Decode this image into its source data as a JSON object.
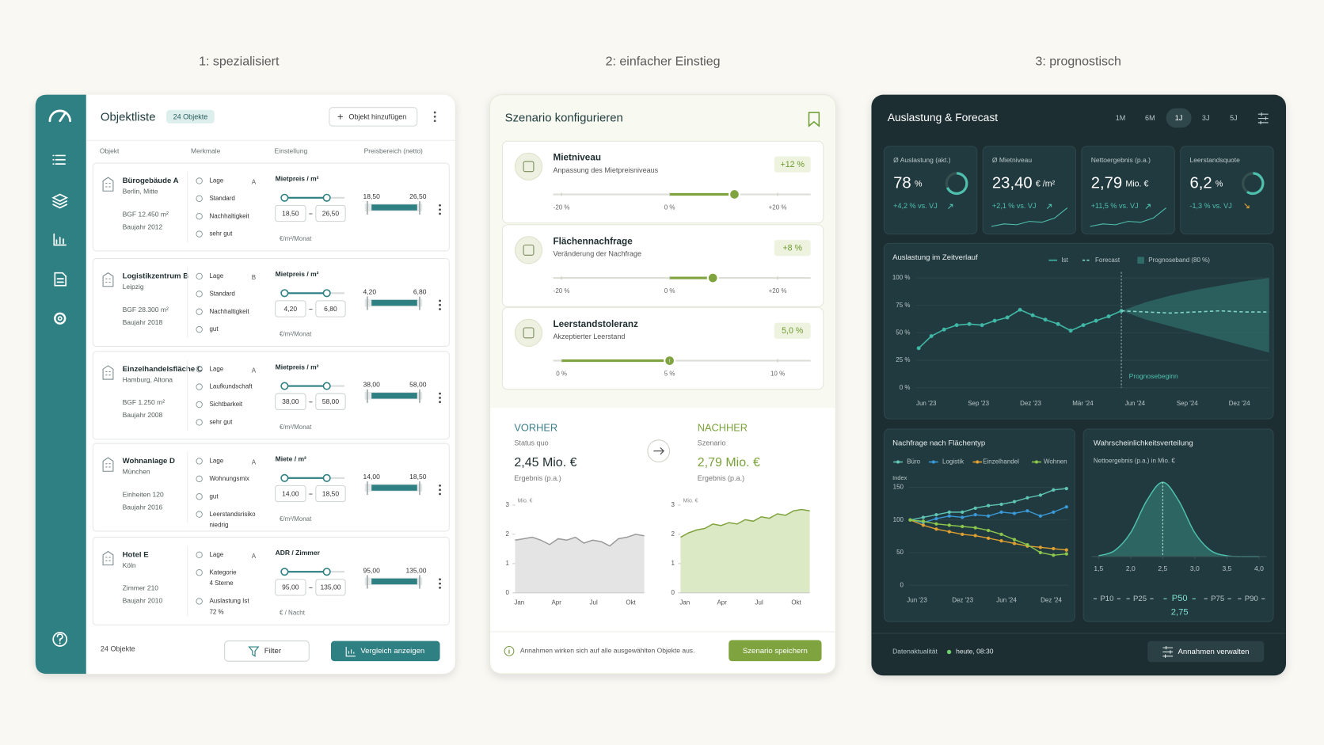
{
  "columns": [
    "1: spezialisiert",
    "2: einfacher Einstieg",
    "3: prognostisch"
  ],
  "objektliste": {
    "title": "Objektliste",
    "badge": "24 Objekte",
    "add_button": "Objekt hinzufügen",
    "headers": [
      "Objekt",
      "Merkmale",
      "Einstellung",
      "Preisbereich (netto)"
    ],
    "rows": [
      {
        "name": "Bürogebäude A",
        "location": "Berlin, Mitte",
        "details": [
          "BGF 12.450 m²",
          "Baujahr 2012"
        ],
        "features": [
          [
            "Lage"
          ],
          [
            "Standard"
          ],
          [
            "Nachhaltigkeit"
          ],
          [
            "sehr gut"
          ]
        ],
        "grade": "A",
        "setting": "Mietpreis / m²",
        "min": "18,50",
        "max": "26,50",
        "unit": "€/m²/Monat"
      },
      {
        "name": "Logistikzentrum B",
        "location": "Leipzig",
        "details": [
          "BGF 28.300 m²",
          "Baujahr 2018"
        ],
        "features": [
          [
            "Lage"
          ],
          [
            "Standard"
          ],
          [
            "Nachhaltigkeit"
          ],
          [
            "gut"
          ]
        ],
        "grade": "B",
        "setting": "Mietpreis / m²",
        "min": "4,20",
        "max": "6,80",
        "unit": "€/m²/Monat"
      },
      {
        "name": "Einzelhandelsfläche C",
        "location": "Hamburg, Altona",
        "details": [
          "BGF 1.250 m²",
          "Baujahr 2008"
        ],
        "features": [
          [
            "Lage"
          ],
          [
            "Laufkundschaft"
          ],
          [
            "Sichtbarkeit"
          ],
          [
            "sehr gut"
          ]
        ],
        "grade": "A",
        "setting": "Mietpreis / m²",
        "min": "38,00",
        "max": "58,00",
        "unit": "€/m²/Monat"
      },
      {
        "name": "Wohnanlage D",
        "location": "München",
        "details": [
          "Einheiten 120",
          "Baujahr 2016"
        ],
        "features": [
          [
            "Lage"
          ],
          [
            "Wohnungsmix"
          ],
          [
            "gut"
          ],
          [
            "Leerstandsrisiko",
            "niedrig"
          ]
        ],
        "grade": "A",
        "setting": "Miete / m²",
        "min": "14,00",
        "max": "18,50",
        "unit": "€/m²/Monat"
      },
      {
        "name": "Hotel E",
        "location": "Köln",
        "details": [
          "Zimmer 210",
          "Baujahr 2010"
        ],
        "features": [
          [
            "Lage"
          ],
          [
            "Kategorie",
            "4 Sterne"
          ],
          [
            "Auslastung Ist",
            "72 %"
          ]
        ],
        "grade": "A",
        "setting": "ADR / Zimmer",
        "min": "95,00",
        "max": "135,00",
        "unit": "€ / Nacht"
      }
    ],
    "count": "24 Objekte",
    "filter": "Filter",
    "compare": "Vergleich anzeigen"
  },
  "szenario": {
    "title": "Szenario konfigurieren",
    "sliders": [
      {
        "title": "Mietniveau",
        "subtitle": "Anpassung des Mietpreisniveaus",
        "value": 12,
        "value_label": "+12 %",
        "ticks": [
          {
            "value": -20,
            "label": "-20 %"
          },
          {
            "value": 0,
            "label": "0 %"
          },
          {
            "value": 20,
            "label": "+20 %"
          }
        ]
      },
      {
        "title": "Flächennachfrage",
        "subtitle": "Veränderung der Nachfrage",
        "value": 8,
        "value_label": "+8 %",
        "ticks": [
          {
            "value": -20,
            "label": "-20 %"
          },
          {
            "value": 0,
            "label": "0 %"
          },
          {
            "value": 20,
            "label": "+20 %"
          }
        ]
      },
      {
        "title": "Leerstandstoleranz",
        "subtitle": "Akzeptierter Leerstand",
        "value": 5,
        "value_label": "5,0 %",
        "ticks": [
          {
            "value": 0,
            "label": "0 %"
          },
          {
            "value": 5,
            "label": "5 %"
          },
          {
            "value": 10,
            "label": "10 %"
          }
        ]
      }
    ],
    "vorher": {
      "heading": "VORHER",
      "subheading": "Status quo",
      "result": "2,45 Mio. €",
      "result_label": "Ergebnis (p.a.)",
      "chart": {
        "type": "area",
        "ylabel": "Mio. €",
        "ylim": [
          0,
          3
        ],
        "yticks": [
          0,
          1,
          2,
          3
        ],
        "categories": [
          "Jan",
          "Apr",
          "Jul",
          "Okt"
        ],
        "values": [
          1.8,
          1.85,
          1.9,
          1.8,
          1.65,
          1.85,
          1.8,
          1.9,
          1.7,
          1.8,
          1.75,
          1.6,
          1.85,
          1.9,
          2.0,
          1.95
        ]
      }
    },
    "nachher": {
      "heading": "NACHHER",
      "subheading": "Szenario",
      "result": "2,79 Mio. €",
      "result_label": "Ergebnis (p.a.)",
      "chart": {
        "type": "area",
        "ylabel": "Mio. €",
        "ylim": [
          0,
          3
        ],
        "yticks": [
          0,
          1,
          2,
          3
        ],
        "categories": [
          "Jan",
          "Apr",
          "Jul",
          "Okt"
        ],
        "values": [
          1.9,
          2.05,
          2.15,
          2.2,
          2.35,
          2.3,
          2.4,
          2.35,
          2.5,
          2.45,
          2.6,
          2.55,
          2.7,
          2.65,
          2.8,
          2.85,
          2.8
        ]
      }
    },
    "note": "Annahmen wirken sich auf alle ausgewählten Objekte aus.",
    "save": "Szenario speichern"
  },
  "forecast": {
    "title": "Auslastung & Forecast",
    "ranges": [
      "1M",
      "6M",
      "1J",
      "3J",
      "5J"
    ],
    "active_range": 2,
    "kpis": [
      {
        "label": "Ø Auslastung (akt.)",
        "value": "78",
        "unit": "%",
        "change": "+4,2 % vs. VJ"
      },
      {
        "label": "Ø Mietniveau",
        "value": "23,40",
        "unit": "€ /m²",
        "change": "+2,1 % vs. VJ"
      },
      {
        "label": "Nettoergebnis (p.a.)",
        "value": "2,79",
        "unit": "Mio. €",
        "change": "+11,5 % vs. VJ"
      },
      {
        "label": "Leerstandsquote",
        "value": "6,2",
        "unit": "%",
        "change": "-1,3 % vs. VJ"
      }
    ],
    "utilization": {
      "type": "line",
      "title": "Auslastung im Zeitverlauf",
      "series": [
        {
          "name": "Ist",
          "color": "#3fb8a6",
          "values": [
            36,
            47,
            53,
            57,
            58,
            57,
            61,
            64,
            71,
            66,
            62,
            58,
            52,
            57,
            61,
            65,
            70
          ]
        },
        {
          "name": "Forecast",
          "color": "#7fd6c6",
          "values": [
            70,
            69,
            68,
            69,
            70,
            69,
            69
          ]
        }
      ],
      "band": {
        "name": "Prognoseband (80 %)",
        "color": "#2f6c68",
        "upper": [
          70,
          78,
          84,
          89,
          93,
          97,
          100
        ],
        "lower": [
          70,
          62,
          56,
          50,
          44,
          38,
          32
        ]
      },
      "ylim": [
        0,
        100
      ],
      "yticks": [
        {
          "value": 0,
          "label": "0 %"
        },
        {
          "value": 25,
          "label": "25 %"
        },
        {
          "value": 50,
          "label": "50 %"
        },
        {
          "value": 75,
          "label": "75 %"
        },
        {
          "value": 100,
          "label": "100 %"
        }
      ],
      "x_labels": [
        "Jun '23",
        "Sep '23",
        "Dez '23",
        "Mär '24",
        "Jun '24",
        "Sep '24",
        "Dez '24"
      ],
      "annotation": "Prognosebeginn"
    },
    "demand": {
      "type": "line",
      "title": "Nachfrage nach Flächentyp",
      "ylabel": "Index",
      "ylim": [
        0,
        150
      ],
      "yticks": [
        0,
        50,
        100,
        150
      ],
      "x_labels": [
        "Jun '23",
        "Dez '23",
        "Jun '24",
        "Dez '24"
      ],
      "series": [
        {
          "name": "Büro",
          "color": "#5fc6b4",
          "values": [
            100,
            104,
            108,
            112,
            112,
            118,
            122,
            124,
            128,
            134,
            138,
            146,
            148
          ]
        },
        {
          "name": "Logistik",
          "color": "#3a9ad9",
          "values": [
            100,
            96,
            102,
            106,
            104,
            108,
            106,
            112,
            110,
            114,
            106,
            112,
            120
          ]
        },
        {
          "name": "Einzelhandel",
          "color": "#e0a030",
          "values": [
            100,
            92,
            86,
            82,
            78,
            76,
            72,
            68,
            64,
            60,
            58,
            56,
            54
          ]
        },
        {
          "name": "Wohnen",
          "color": "#8cc84b",
          "values": [
            100,
            98,
            94,
            92,
            90,
            88,
            84,
            78,
            70,
            62,
            50,
            46,
            48
          ]
        }
      ]
    },
    "distribution": {
      "type": "area",
      "title": "Wahrscheinlichkeitsverteilung",
      "subtitle": "Nettoergebnis (p.a.) in Mio. €",
      "xlim": [
        1.5,
        4.0
      ],
      "xticks": [
        {
          "value": 1.5,
          "label": "1,5"
        },
        {
          "value": 2.0,
          "label": "2,0"
        },
        {
          "value": 2.5,
          "label": "2,5"
        },
        {
          "value": 3.0,
          "label": "3,0"
        },
        {
          "value": 3.5,
          "label": "3,5"
        },
        {
          "value": 4.0,
          "label": "4,0"
        }
      ],
      "x": [
        1.5,
        1.75,
        2.0,
        2.25,
        2.5,
        2.75,
        3.0,
        3.25,
        3.5,
        3.75,
        4.0
      ],
      "values": [
        0.01,
        0.08,
        0.32,
        0.75,
        1,
        0.75,
        0.32,
        0.08,
        0.01,
        0,
        0
      ],
      "percentiles": [
        "P10",
        "P25",
        "P50",
        "P75",
        "P90"
      ],
      "p50_value": "2,75"
    },
    "footer_label": "Datenaktualität",
    "footer_time": "heute, 08:30",
    "manage": "Annahmen verwalten"
  }
}
